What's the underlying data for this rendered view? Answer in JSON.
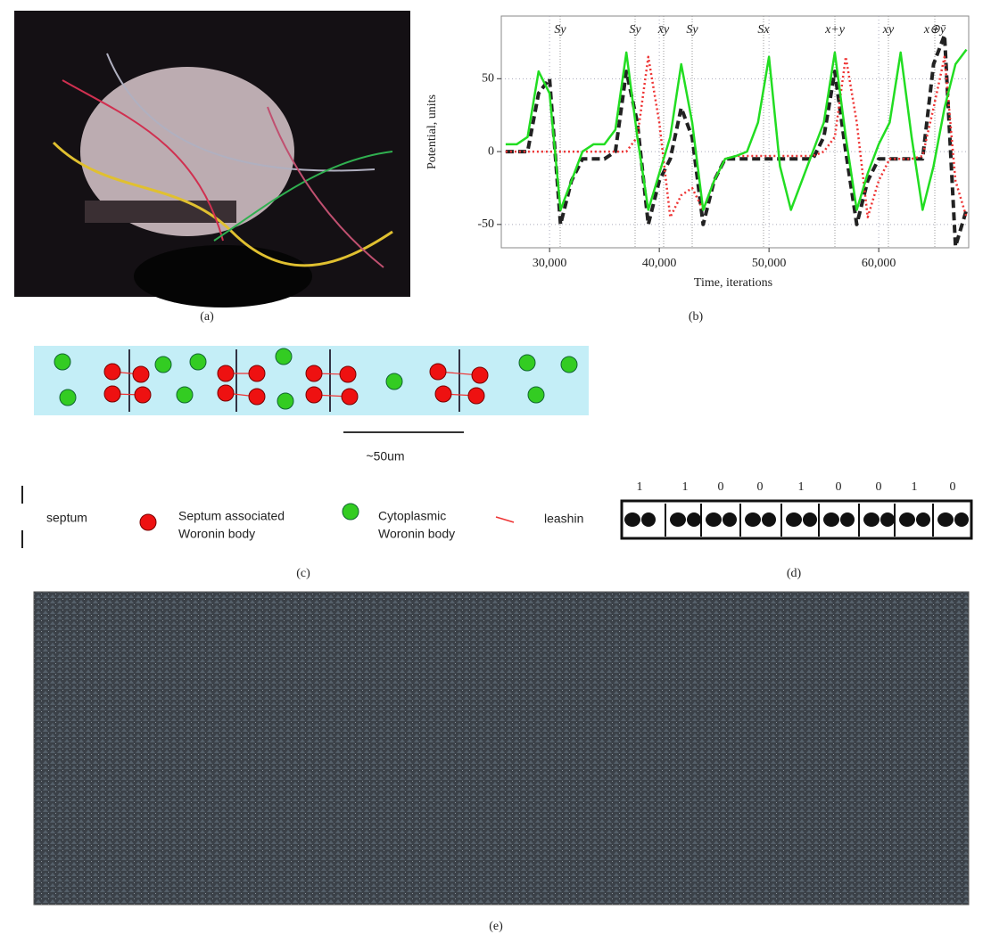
{
  "chart_data": {
    "type": "line",
    "xlabel": "Time, iterations",
    "ylabel": "Potential, units",
    "annotations": [
      "Sy",
      "Sy",
      "x̄y",
      "Sy",
      "Sx",
      "x+y",
      "xy",
      "x⊕ȳ"
    ],
    "x": [
      26000,
      27000,
      28000,
      29000,
      30000,
      31000,
      32000,
      33000,
      34000,
      35000,
      36000,
      37000,
      38000,
      39000,
      40000,
      41000,
      42000,
      43000,
      44000,
      45000,
      46000,
      47000,
      48000,
      49000,
      50000,
      51000,
      52000,
      53000,
      54000,
      55000,
      56000,
      57000,
      58000,
      59000,
      60000,
      61000,
      62000,
      63000,
      64000,
      65000,
      66000,
      67000,
      68000
    ],
    "series": [
      {
        "color": "#22dd22",
        "style": "solid",
        "values": [
          5,
          5,
          10,
          55,
          40,
          -40,
          -20,
          0,
          5,
          5,
          15,
          68,
          10,
          -40,
          -15,
          10,
          60,
          20,
          -40,
          -20,
          -5,
          -3,
          0,
          20,
          65,
          -10,
          -40,
          -20,
          0,
          20,
          68,
          10,
          -40,
          -15,
          5,
          20,
          68,
          10,
          -40,
          -10,
          30,
          60,
          70
        ]
      },
      {
        "color": "#ee3333",
        "style": "dotted",
        "values": [
          0,
          0,
          0,
          0,
          0,
          0,
          0,
          0,
          0,
          0,
          0,
          0,
          10,
          65,
          20,
          -45,
          -30,
          -25,
          -40,
          -20,
          -5,
          -3,
          -3,
          -3,
          -3,
          -3,
          -3,
          -3,
          -3,
          0,
          10,
          65,
          20,
          -45,
          -20,
          -5,
          -5,
          -5,
          -3,
          30,
          65,
          -20,
          -45
        ]
      },
      {
        "color": "#222222",
        "style": "dashed",
        "values": [
          0,
          0,
          0,
          40,
          50,
          -50,
          -20,
          -5,
          -5,
          -5,
          0,
          55,
          20,
          -50,
          -20,
          -5,
          30,
          10,
          -50,
          -20,
          -5,
          -5,
          -5,
          -5,
          -5,
          -5,
          -5,
          -5,
          -5,
          10,
          55,
          0,
          -50,
          -20,
          -5,
          -5,
          -5,
          -5,
          -5,
          60,
          80,
          -65,
          -40
        ]
      }
    ],
    "xlim": [
      25600,
      68200
    ],
    "ylim": [
      -66,
      93
    ],
    "xticks": [
      {
        "value": 30000,
        "label": "30,000"
      },
      {
        "value": 40000,
        "label": "40,000"
      },
      {
        "value": 50000,
        "label": "50,000"
      },
      {
        "value": 60000,
        "label": "60,000"
      }
    ],
    "yticks": [
      -50,
      0,
      50
    ],
    "grid": true
  },
  "panel_labels": [
    "(a)",
    "(b)",
    "(c)",
    "(d)",
    "(e)"
  ],
  "panel_c": {
    "scale_label": "~50um",
    "legend": [
      [
        "septum"
      ],
      [
        "Septum associated",
        "Woronin body"
      ],
      [
        "Cytoplasmic",
        "Woronin body"
      ],
      [
        "leashin"
      ]
    ]
  },
  "panel_d": {
    "bits": [
      1,
      1,
      0,
      0,
      1,
      0,
      0,
      1,
      0
    ]
  }
}
